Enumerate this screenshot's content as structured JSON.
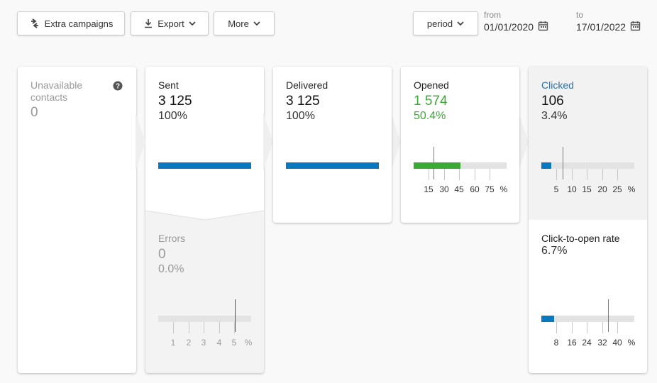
{
  "toolbar": {
    "extra_campaigns_label": "Extra campaigns",
    "export_label": "Export",
    "more_label": "More",
    "period_label": "period",
    "from_label": "from",
    "from_date": "01/01/2020",
    "to_label": "to",
    "to_date": "17/01/2022"
  },
  "cards": {
    "unavailable": {
      "title": "Unavailable contacts",
      "value": "0"
    },
    "sent": {
      "title": "Sent",
      "value": "3 125",
      "pct": "100%",
      "fill": 1.0
    },
    "errors": {
      "title": "Errors",
      "value": "0",
      "pct": "0.0%",
      "fill": 0.0,
      "ticks": [
        "1",
        "2",
        "3",
        "4",
        "5",
        "%"
      ],
      "marker_color": "#b03030"
    },
    "delivered": {
      "title": "Delivered",
      "value": "3 125",
      "pct": "100%",
      "fill": 1.0
    },
    "opened": {
      "title": "Opened",
      "value": "1 574",
      "pct": "50.4%",
      "fill": 0.504,
      "ticks": [
        "15",
        "30",
        "45",
        "60",
        "75",
        "%"
      ]
    },
    "clicked": {
      "title": "Clicked",
      "value": "106",
      "pct": "3.4%",
      "fill": 0.034,
      "ticks": [
        "5",
        "10",
        "15",
        "20",
        "25",
        "%"
      ]
    },
    "ctor": {
      "title": "Click-to-open rate",
      "value": "6.7%",
      "fill": 0.067,
      "ticks": [
        "8",
        "16",
        "24",
        "32",
        "40",
        "%"
      ]
    }
  },
  "colors": {
    "blue": "#0a78be",
    "green": "#3aaa35",
    "grey_text": "#9a9a9a",
    "clicked_title": "#2f6fa8"
  }
}
